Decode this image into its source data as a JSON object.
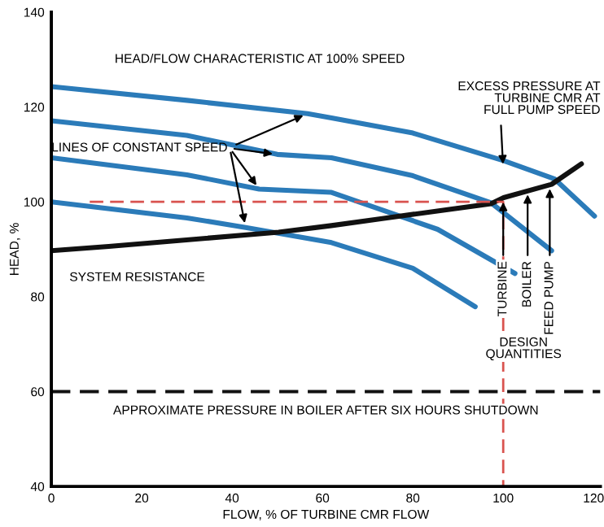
{
  "chart_data": {
    "type": "line",
    "xlabel": "FLOW, % OF TURBINE CMR FLOW",
    "ylabel": "HEAD, %",
    "xlim": [
      0,
      121.5
    ],
    "xticks": [
      0,
      20,
      40,
      60,
      80,
      100,
      120
    ],
    "ylim": [
      40,
      140
    ],
    "yticks": [
      40,
      60,
      80,
      100,
      120,
      140
    ],
    "grid": false,
    "legend": false,
    "line_style": "solid",
    "marker": "none",
    "series": [
      {
        "name": "HEAD/FLOW CHARACTERISTIC AT 100% SPEED",
        "color": "#2b7bb9",
        "x": [
          0,
          30,
          56.7,
          62,
          80,
          100,
          111.4,
          120.2
        ],
        "values": [
          124.3,
          121.4,
          118.6,
          117.7,
          114.5,
          108.7,
          104.8,
          97
        ]
      },
      {
        "color": "#2b7bb9",
        "x": [
          0,
          30,
          50,
          62,
          80,
          97.3,
          110.7
        ],
        "values": [
          117.1,
          114,
          110,
          109.3,
          105.5,
          99.8,
          89.7
        ]
      },
      {
        "color": "#2b7bb9",
        "x": [
          0,
          30,
          46,
          62,
          85.5,
          102.6
        ],
        "values": [
          109.3,
          105.7,
          102.7,
          102,
          94.2,
          84.9
        ]
      },
      {
        "color": "#2b7bb9",
        "x": [
          0,
          30,
          43,
          62,
          80,
          93.8
        ],
        "values": [
          100,
          96.6,
          94.6,
          91.4,
          86,
          77.9
        ]
      },
      {
        "name": "SYSTEM RESISTANCE",
        "color": "#111111",
        "x": [
          0,
          12.7,
          50.3,
          62,
          72.6,
          97.3,
          100.1,
          110.7,
          117.3
        ],
        "values": [
          89.7,
          90.6,
          93.6,
          95,
          96.4,
          99.6,
          100.9,
          103.7,
          108
        ]
      },
      {
        "color": "#d9534f",
        "line_style": "dashed",
        "x": [
          8.5,
          100,
          100
        ],
        "values": [
          100,
          100,
          40
        ]
      }
    ],
    "ref_lines": [
      {
        "axis": "y",
        "value": 60,
        "label": "APPROXIMATE PRESSURE IN BOILER AFTER SIX HOURS SHUTDOWN",
        "color": "#111111",
        "line_style": "dashed"
      }
    ],
    "annotations": [
      {
        "text": "LINES OF CONSTANT SPEED",
        "x": 56.7,
        "y": 118.6
      },
      {
        "text": "EXCESS PRESSURE AT\nTURBINE CMR AT\nFULL PUMP SPEED",
        "x": 100,
        "y": 107
      },
      {
        "text": "TURBINE",
        "x": 100,
        "y": 100.9
      },
      {
        "text": "BOILER",
        "x": 105.4,
        "y": 102.5
      },
      {
        "text": "FEED PUMP",
        "x": 110.3,
        "y": 103.7
      },
      "DESIGN\nQUANTITIES"
    ]
  }
}
